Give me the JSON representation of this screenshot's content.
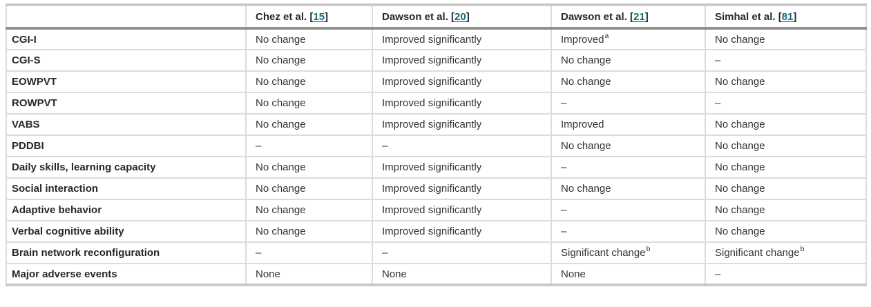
{
  "table": {
    "stub_header": "",
    "columns": [
      {
        "study": "Chez et al.",
        "ref": "15"
      },
      {
        "study": "Dawson et al.",
        "ref": "20"
      },
      {
        "study": "Dawson et al.",
        "ref": "21"
      },
      {
        "study": "Simhal et al.",
        "ref": "81"
      }
    ],
    "bracket_open": "[",
    "bracket_close": "]",
    "rows": [
      {
        "label": "CGI-I",
        "cells": [
          "No change",
          "Improved significantly",
          {
            "text": "Improved",
            "sup": "a"
          },
          "No change"
        ]
      },
      {
        "label": "CGI-S",
        "cells": [
          "No change",
          "Improved significantly",
          "No change",
          "–"
        ]
      },
      {
        "label": "EOWPVT",
        "cells": [
          "No change",
          "Improved significantly",
          "No change",
          "No change"
        ]
      },
      {
        "label": "ROWPVT",
        "cells": [
          "No change",
          "Improved significantly",
          "–",
          "–"
        ]
      },
      {
        "label": "VABS",
        "cells": [
          "No change",
          "Improved significantly",
          "Improved",
          "No change"
        ]
      },
      {
        "label": "PDDBI",
        "cells": [
          "–",
          "–",
          "No change",
          "No change"
        ]
      },
      {
        "label": "Daily skills, learning capacity",
        "cells": [
          "No change",
          "Improved significantly",
          "–",
          "No change"
        ]
      },
      {
        "label": "Social interaction",
        "cells": [
          "No change",
          "Improved significantly",
          "No change",
          "No change"
        ]
      },
      {
        "label": "Adaptive behavior",
        "cells": [
          "No change",
          "Improved significantly",
          "–",
          "No change"
        ]
      },
      {
        "label": "Verbal cognitive ability",
        "cells": [
          "No change",
          "Improved significantly",
          "–",
          "No change"
        ]
      },
      {
        "label": "Brain network reconfiguration",
        "cells": [
          "–",
          "–",
          {
            "text": "Significant change",
            "sup": "b"
          },
          {
            "text": "Significant change",
            "sup": "b"
          }
        ]
      },
      {
        "label": "Major adverse events",
        "cells": [
          "None",
          "None",
          "None",
          "–"
        ]
      }
    ]
  },
  "colors": {
    "citation_link": "#166a7e",
    "row_label_text": "#22292e",
    "cell_text": "#333333",
    "grid_line": "#dcdcdc",
    "outer_rule": "#c9c9c9",
    "header_rule": "#909090"
  }
}
